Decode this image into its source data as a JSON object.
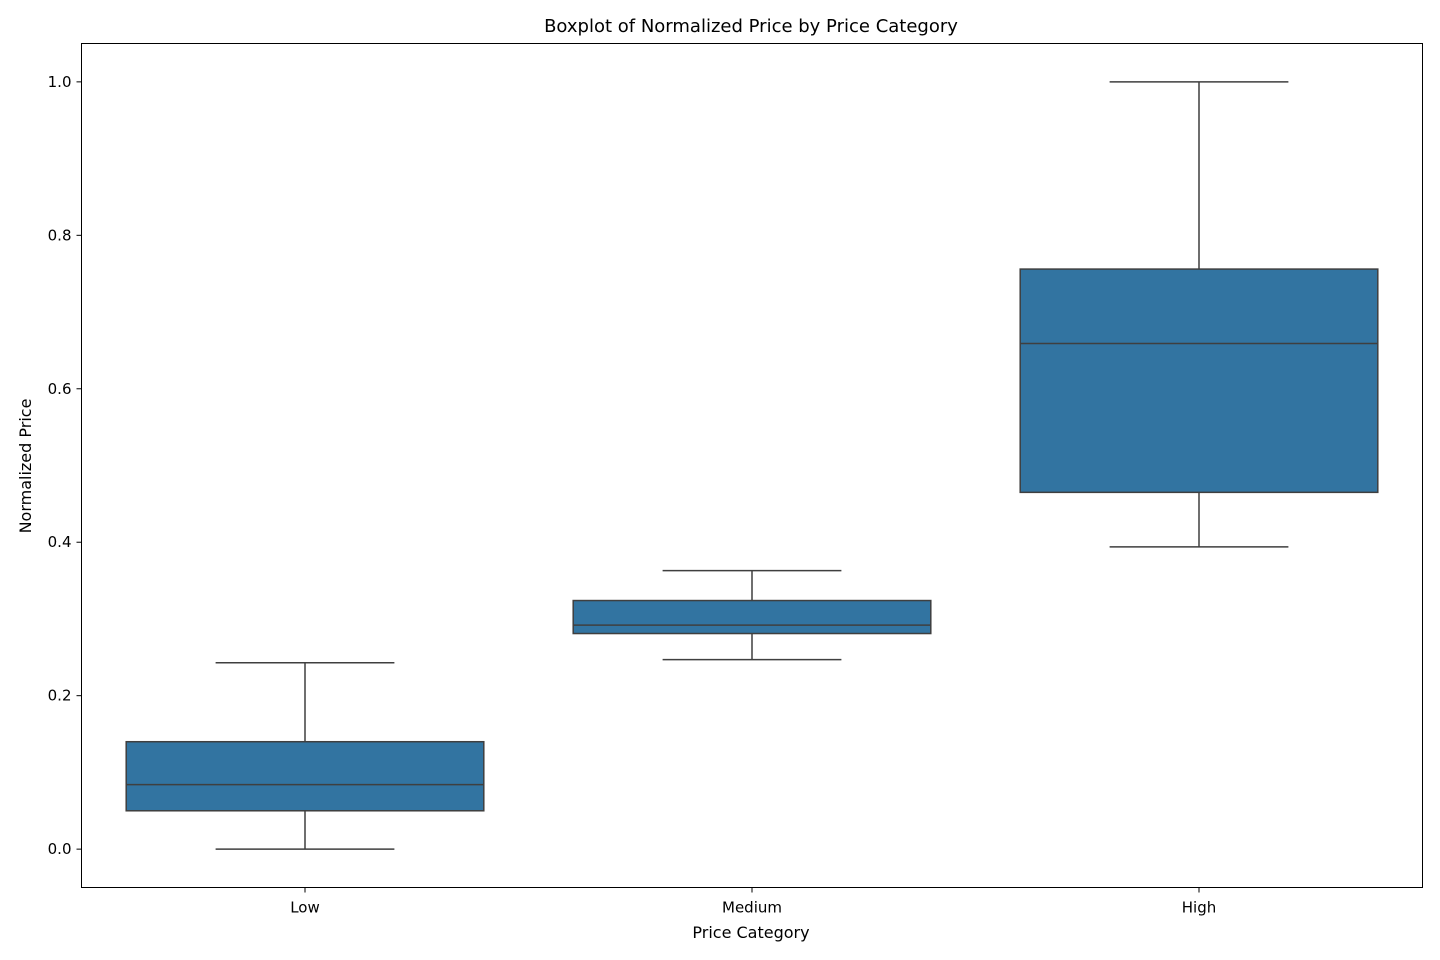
{
  "chart_data": {
    "type": "box",
    "title": "Boxplot of Normalized Price by Price Category",
    "xlabel": "Price Category",
    "ylabel": "Normalized Price",
    "categories": [
      "Low",
      "Medium",
      "High"
    ],
    "boxes": [
      {
        "category": "Low",
        "whisker_low": 0.0,
        "q1": 0.05,
        "median": 0.084,
        "q3": 0.14,
        "whisker_high": 0.243
      },
      {
        "category": "Medium",
        "whisker_low": 0.247,
        "q1": 0.281,
        "median": 0.292,
        "q3": 0.324,
        "whisker_high": 0.363
      },
      {
        "category": "High",
        "whisker_low": 0.394,
        "q1": 0.465,
        "median": 0.659,
        "q3": 0.756,
        "whisker_high": 1.0
      }
    ],
    "yticks": [
      0.0,
      0.2,
      0.4,
      0.6,
      0.8,
      1.0
    ],
    "ytick_labels": [
      "0.0",
      "0.2",
      "0.4",
      "0.6",
      "0.8",
      "1.0"
    ],
    "ylim": [
      -0.05,
      1.05
    ],
    "grid": false,
    "colors": {
      "box_fill": "#3274a1",
      "line": "#3f3f3f"
    }
  }
}
